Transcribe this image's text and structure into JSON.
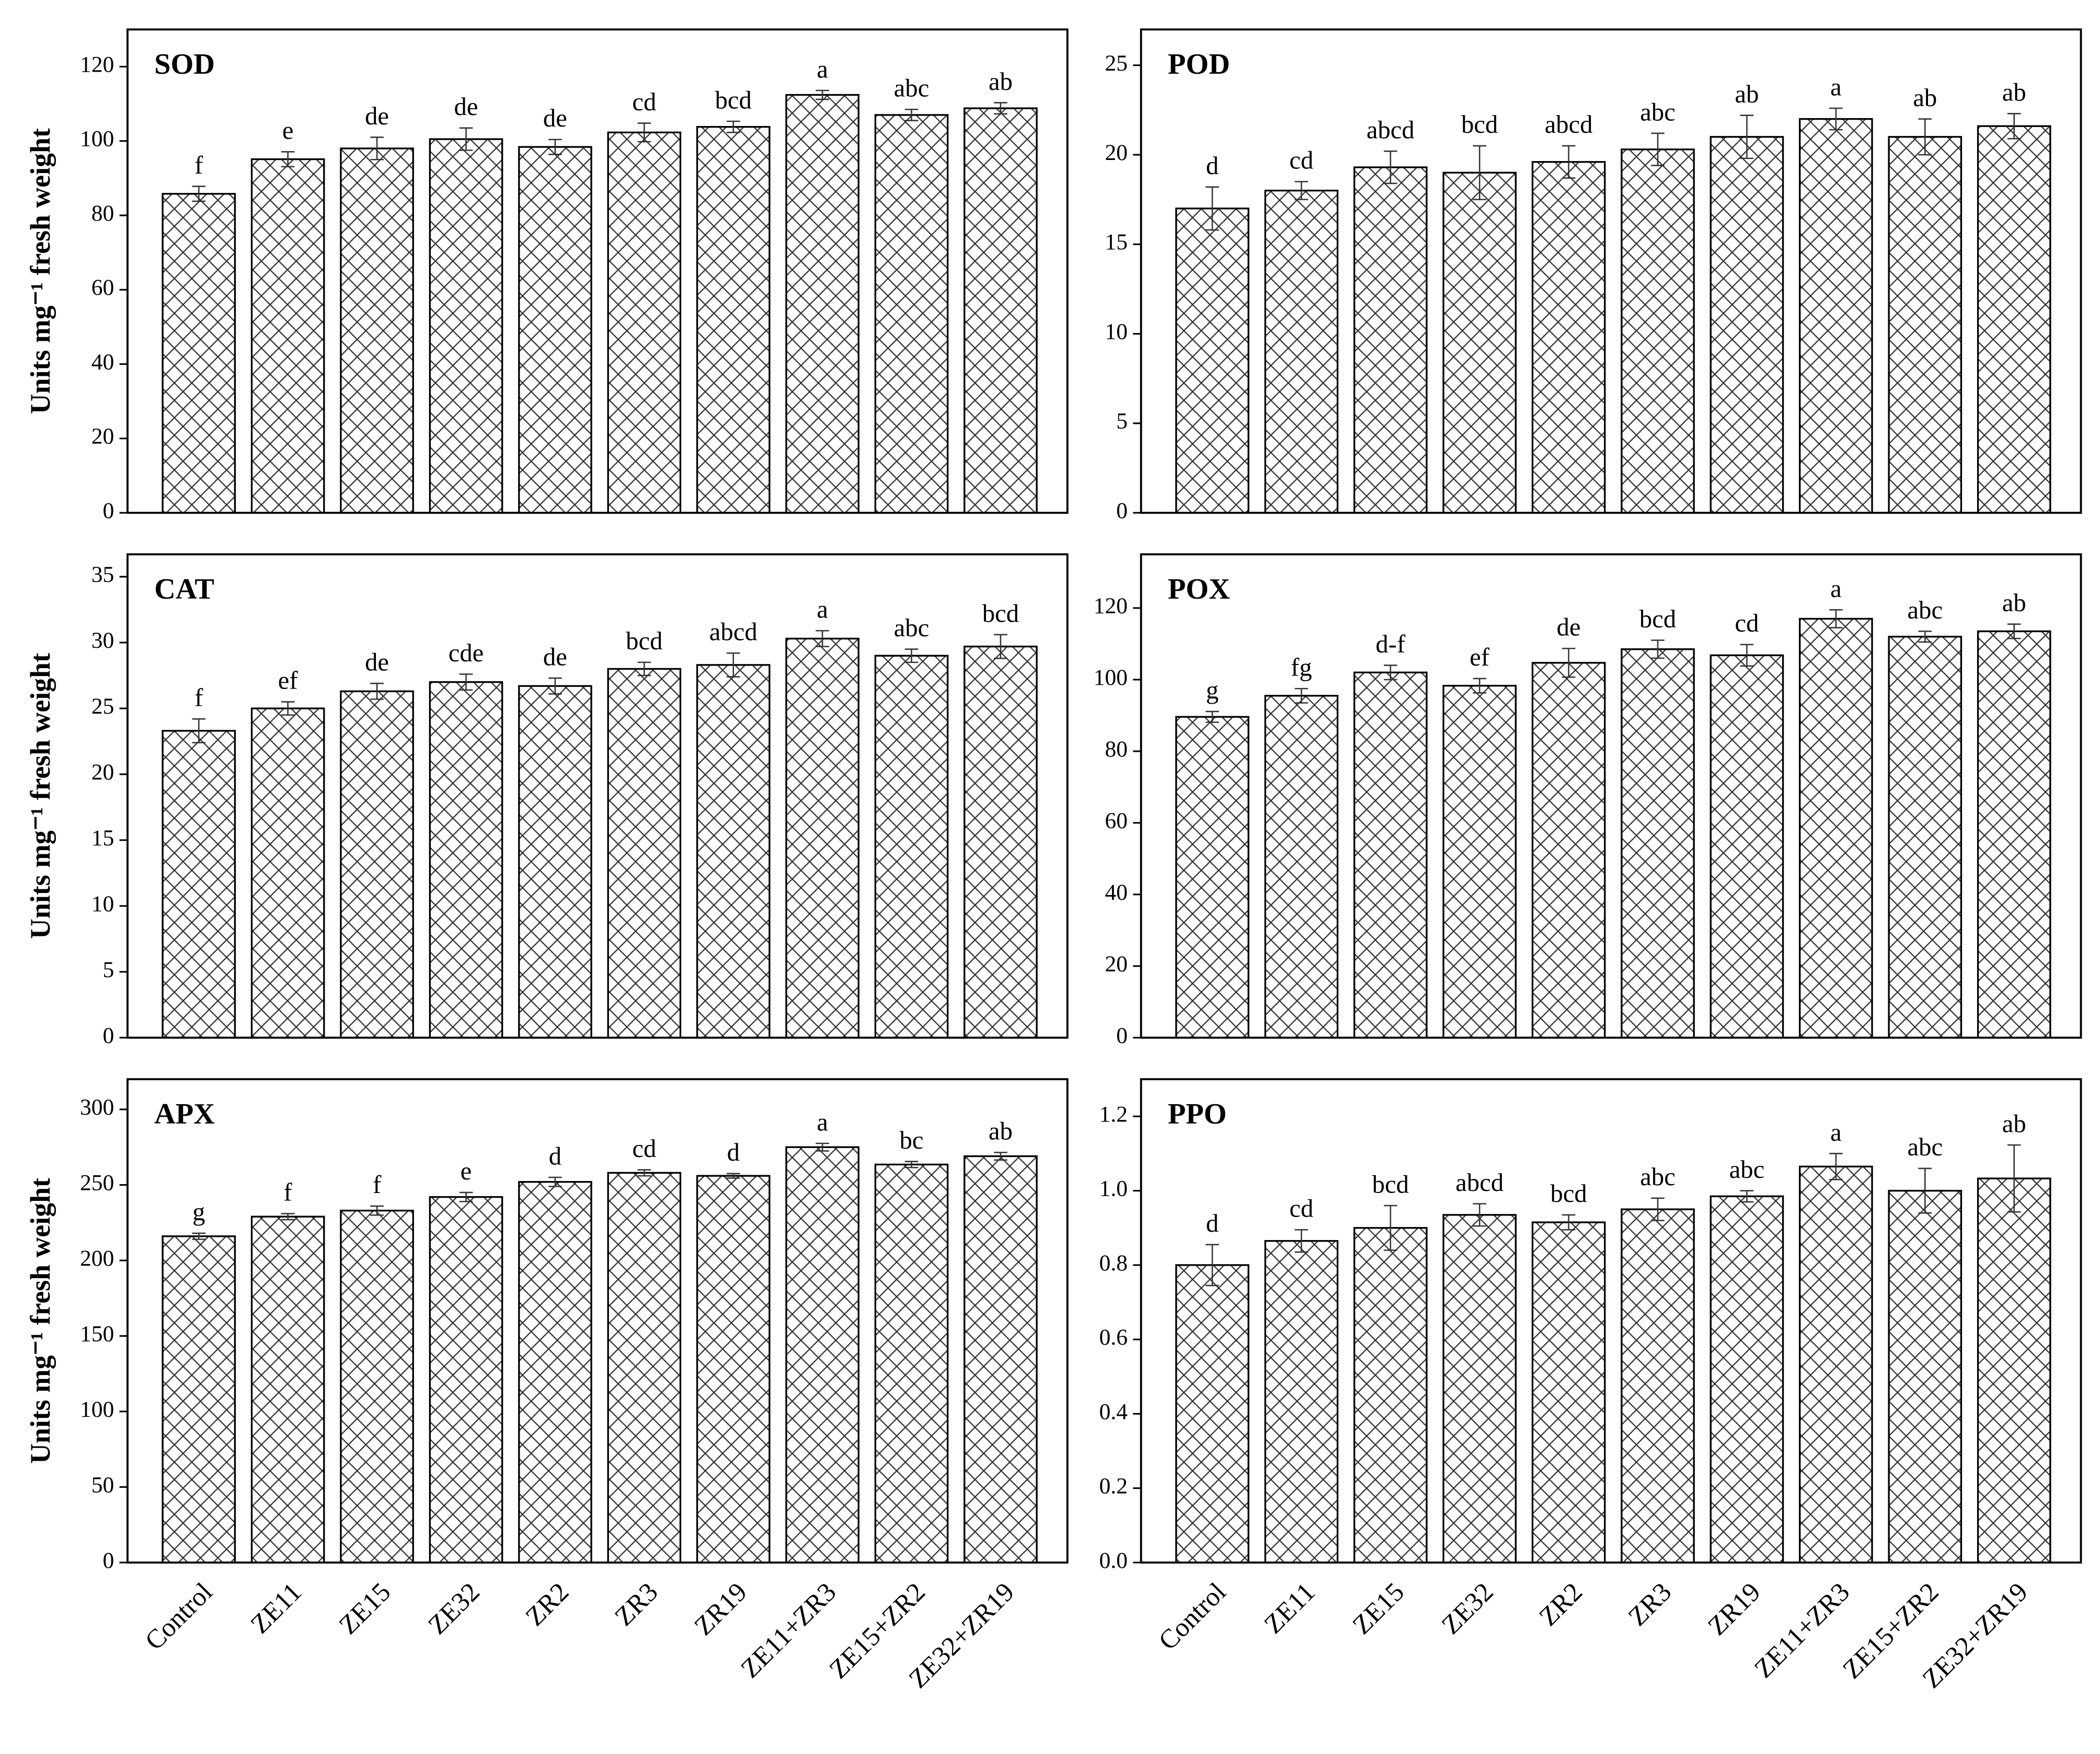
{
  "chart_data": [
    {
      "type": "bar",
      "title": "SOD",
      "y_label": "Units mg⁻¹ fresh weight",
      "values": [
        85.8,
        95.1,
        98,
        100.5,
        98.4,
        102.3,
        103.8,
        112.4,
        107,
        108.8
      ],
      "errors": [
        2,
        2,
        3,
        3,
        2,
        2.5,
        1.5,
        1.2,
        1.5,
        1.5
      ],
      "letters": [
        "f",
        "e",
        "de",
        "de",
        "de",
        "cd",
        "bcd",
        "a",
        "abc",
        "ab"
      ],
      "ylim": [
        0,
        130
      ],
      "yticks": [
        0,
        20,
        40,
        60,
        80,
        100,
        120
      ]
    },
    {
      "type": "bar",
      "title": "POD",
      "values": [
        17,
        18,
        19.3,
        19,
        19.6,
        20.3,
        21,
        22,
        21,
        21.6
      ],
      "errors": [
        1.2,
        0.5,
        0.9,
        1.5,
        0.9,
        0.9,
        1.2,
        0.6,
        1,
        0.7
      ],
      "letters": [
        "d",
        "cd",
        "abcd",
        "bcd",
        "abcd",
        "abc",
        "ab",
        "a",
        "ab",
        "ab"
      ],
      "ylim": [
        0,
        27
      ],
      "yticks": [
        0,
        5,
        10,
        15,
        20,
        25
      ]
    },
    {
      "type": "bar",
      "title": "CAT",
      "y_label": "Units mg⁻¹ fresh weight",
      "values": [
        23.3,
        25,
        26.3,
        27,
        26.7,
        28,
        28.3,
        30.3,
        29,
        29.7
      ],
      "errors": [
        0.9,
        0.5,
        0.6,
        0.6,
        0.6,
        0.5,
        0.9,
        0.6,
        0.5,
        0.9
      ],
      "letters": [
        "f",
        "ef",
        "de",
        "cde",
        "de",
        "bcd",
        "abcd",
        "a",
        "abc",
        "bcd"
      ],
      "ylim": [
        0,
        36.7
      ],
      "yticks": [
        0,
        5,
        10,
        15,
        20,
        25,
        30,
        35
      ]
    },
    {
      "type": "bar",
      "title": "POX",
      "values": [
        89.6,
        95.5,
        102,
        98.3,
        104.7,
        108.5,
        106.8,
        117,
        112,
        113.5
      ],
      "errors": [
        1.5,
        2,
        2,
        2,
        4,
        2.5,
        3,
        2.5,
        1.5,
        2
      ],
      "letters": [
        "g",
        "fg",
        "d-f",
        "ef",
        "de",
        "bcd",
        "cd",
        "a",
        "abc",
        "ab"
      ],
      "ylim": [
        0,
        135
      ],
      "yticks": [
        0,
        20,
        40,
        60,
        80,
        100,
        120
      ]
    },
    {
      "type": "bar",
      "title": "APX",
      "y_label": "Units mg⁻¹ fresh weight",
      "categories": [
        "Control",
        "ZE11",
        "ZE15",
        "ZE32",
        "ZR2",
        "ZR3",
        "ZR19",
        "ZE11+ZR3",
        "ZE15+ZR2",
        "ZE32+ZR19"
      ],
      "values": [
        216,
        229,
        233,
        242,
        252,
        258,
        256,
        275,
        263.5,
        269
      ],
      "errors": [
        2,
        2,
        3,
        3,
        3,
        2,
        1.5,
        2.5,
        2,
        2.5
      ],
      "letters": [
        "g",
        "f",
        "f",
        "e",
        "d",
        "cd",
        "d",
        "a",
        "bc",
        "ab"
      ],
      "ylim": [
        0,
        320
      ],
      "yticks": [
        0,
        50,
        100,
        150,
        200,
        250,
        300
      ]
    },
    {
      "type": "bar",
      "title": "PPO",
      "categories": [
        "Control",
        "ZE11",
        "ZE15",
        "ZE32",
        "ZR2",
        "ZR3",
        "ZR19",
        "ZE11+ZR3",
        "ZE15+ZR2",
        "ZE32+ZR19"
      ],
      "values": [
        0.8,
        0.865,
        0.9,
        0.935,
        0.915,
        0.95,
        0.985,
        1.065,
        1.0,
        1.033
      ],
      "errors": [
        0.055,
        0.03,
        0.06,
        0.03,
        0.02,
        0.03,
        0.015,
        0.035,
        0.06,
        0.09
      ],
      "letters": [
        "d",
        "cd",
        "bcd",
        "abcd",
        "bcd",
        "abc",
        "abc",
        "a",
        "abc",
        "ab"
      ],
      "ylim": [
        0,
        1.3
      ],
      "yticks": [
        {
          "value": 0,
          "label": "0.0"
        },
        0.2,
        0.4,
        0.6,
        0.8,
        {
          "value": 1,
          "label": "1.0"
        },
        1.2
      ]
    }
  ]
}
